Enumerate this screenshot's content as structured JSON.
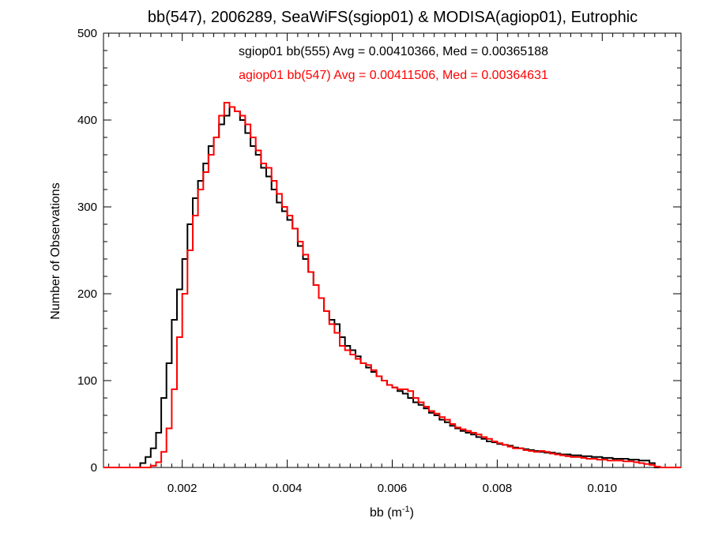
{
  "chart_data": {
    "type": "line",
    "step": true,
    "title": "bb(547), 2006289, SeaWiFS(sgiop01) & MODISA(agiop01), Eutrophic",
    "xlabel": "bb (m",
    "xlabel_sup": "-1",
    "xlabel_close": ")",
    "ylabel": "Number of Observations",
    "xlim": [
      0.0005,
      0.0115
    ],
    "ylim": [
      0,
      500
    ],
    "x_ticks": [
      0.002,
      0.004,
      0.006,
      0.008,
      0.01
    ],
    "x_tick_labels": [
      "0.002",
      "0.004",
      "0.006",
      "0.008",
      "0.010"
    ],
    "y_ticks": [
      0,
      100,
      200,
      300,
      400,
      500
    ],
    "y_tick_labels": [
      "0",
      "100",
      "200",
      "300",
      "400",
      "500"
    ],
    "grid": false,
    "annotations": [
      {
        "text": "sgiop01 bb(555) Avg = 0.00410366, Med = 0.00365188",
        "color": "#000000"
      },
      {
        "text": "agiop01 bb(547) Avg = 0.00411506, Med = 0.00364631",
        "color": "#ff0000"
      }
    ],
    "series": [
      {
        "color": "#000000",
        "points": [
          [
            0.0005,
            0
          ],
          [
            0.001,
            0
          ],
          [
            0.0012,
            5
          ],
          [
            0.0013,
            12
          ],
          [
            0.0014,
            22
          ],
          [
            0.0015,
            40
          ],
          [
            0.0016,
            80
          ],
          [
            0.0017,
            120
          ],
          [
            0.0018,
            170
          ],
          [
            0.0019,
            205
          ],
          [
            0.002,
            240
          ],
          [
            0.0021,
            280
          ],
          [
            0.0022,
            310
          ],
          [
            0.0023,
            330
          ],
          [
            0.0024,
            350
          ],
          [
            0.0025,
            370
          ],
          [
            0.0026,
            380
          ],
          [
            0.0027,
            395
          ],
          [
            0.0028,
            405
          ],
          [
            0.0029,
            415
          ],
          [
            0.003,
            410
          ],
          [
            0.0031,
            400
          ],
          [
            0.0032,
            385
          ],
          [
            0.0033,
            370
          ],
          [
            0.0034,
            360
          ],
          [
            0.0035,
            345
          ],
          [
            0.0036,
            335
          ],
          [
            0.0037,
            320
          ],
          [
            0.0038,
            305
          ],
          [
            0.0039,
            295
          ],
          [
            0.004,
            285
          ],
          [
            0.0041,
            275
          ],
          [
            0.0042,
            255
          ],
          [
            0.0043,
            240
          ],
          [
            0.0044,
            225
          ],
          [
            0.0045,
            210
          ],
          [
            0.0046,
            195
          ],
          [
            0.0047,
            180
          ],
          [
            0.0048,
            170
          ],
          [
            0.0049,
            165
          ],
          [
            0.005,
            150
          ],
          [
            0.0051,
            140
          ],
          [
            0.0052,
            135
          ],
          [
            0.0053,
            128
          ],
          [
            0.0054,
            120
          ],
          [
            0.0055,
            115
          ],
          [
            0.0056,
            110
          ],
          [
            0.0057,
            105
          ],
          [
            0.0058,
            100
          ],
          [
            0.0059,
            95
          ],
          [
            0.006,
            92
          ],
          [
            0.0061,
            88
          ],
          [
            0.0062,
            85
          ],
          [
            0.0063,
            80
          ],
          [
            0.0064,
            75
          ],
          [
            0.0065,
            72
          ],
          [
            0.0066,
            68
          ],
          [
            0.0067,
            63
          ],
          [
            0.0068,
            60
          ],
          [
            0.0069,
            55
          ],
          [
            0.007,
            52
          ],
          [
            0.0071,
            48
          ],
          [
            0.0072,
            45
          ],
          [
            0.0073,
            42
          ],
          [
            0.0074,
            40
          ],
          [
            0.0075,
            38
          ],
          [
            0.0076,
            35
          ],
          [
            0.0077,
            33
          ],
          [
            0.0078,
            30
          ],
          [
            0.0079,
            29
          ],
          [
            0.008,
            27
          ],
          [
            0.0081,
            26
          ],
          [
            0.0082,
            25
          ],
          [
            0.0083,
            23
          ],
          [
            0.0084,
            22
          ],
          [
            0.0085,
            21
          ],
          [
            0.0086,
            20
          ],
          [
            0.0087,
            19
          ],
          [
            0.0088,
            18
          ],
          [
            0.0089,
            17
          ],
          [
            0.009,
            17
          ],
          [
            0.0091,
            16
          ],
          [
            0.0092,
            15
          ],
          [
            0.0093,
            15
          ],
          [
            0.0094,
            14
          ],
          [
            0.0095,
            14
          ],
          [
            0.0096,
            13
          ],
          [
            0.0097,
            13
          ],
          [
            0.0098,
            12
          ],
          [
            0.0099,
            12
          ],
          [
            0.01,
            11
          ],
          [
            0.0101,
            11
          ],
          [
            0.0102,
            10
          ],
          [
            0.0103,
            10
          ],
          [
            0.0104,
            10
          ],
          [
            0.0105,
            9
          ],
          [
            0.0106,
            9
          ],
          [
            0.0107,
            8
          ],
          [
            0.0108,
            8
          ],
          [
            0.0109,
            5
          ],
          [
            0.011,
            0
          ],
          [
            0.0115,
            0
          ]
        ]
      },
      {
        "color": "#ff0000",
        "points": [
          [
            0.0005,
            0
          ],
          [
            0.0012,
            0
          ],
          [
            0.0014,
            2
          ],
          [
            0.0015,
            6
          ],
          [
            0.0016,
            18
          ],
          [
            0.0017,
            45
          ],
          [
            0.0018,
            90
          ],
          [
            0.0019,
            150
          ],
          [
            0.002,
            200
          ],
          [
            0.0021,
            250
          ],
          [
            0.0022,
            290
          ],
          [
            0.0023,
            320
          ],
          [
            0.0024,
            340
          ],
          [
            0.0025,
            360
          ],
          [
            0.0026,
            380
          ],
          [
            0.0027,
            405
          ],
          [
            0.0028,
            420
          ],
          [
            0.0029,
            415
          ],
          [
            0.003,
            410
          ],
          [
            0.0031,
            405
          ],
          [
            0.0032,
            395
          ],
          [
            0.0033,
            380
          ],
          [
            0.0034,
            365
          ],
          [
            0.0035,
            350
          ],
          [
            0.0036,
            345
          ],
          [
            0.0037,
            330
          ],
          [
            0.0038,
            315
          ],
          [
            0.0039,
            300
          ],
          [
            0.004,
            290
          ],
          [
            0.0041,
            275
          ],
          [
            0.0042,
            260
          ],
          [
            0.0043,
            245
          ],
          [
            0.0044,
            225
          ],
          [
            0.0045,
            210
          ],
          [
            0.0046,
            195
          ],
          [
            0.0047,
            180
          ],
          [
            0.0048,
            165
          ],
          [
            0.0049,
            155
          ],
          [
            0.005,
            140
          ],
          [
            0.0051,
            135
          ],
          [
            0.0052,
            130
          ],
          [
            0.0053,
            125
          ],
          [
            0.0054,
            120
          ],
          [
            0.0055,
            118
          ],
          [
            0.0056,
            112
          ],
          [
            0.0057,
            105
          ],
          [
            0.0058,
            100
          ],
          [
            0.0059,
            95
          ],
          [
            0.006,
            92
          ],
          [
            0.0061,
            90
          ],
          [
            0.0062,
            90
          ],
          [
            0.0063,
            88
          ],
          [
            0.0064,
            80
          ],
          [
            0.0065,
            75
          ],
          [
            0.0066,
            70
          ],
          [
            0.0067,
            65
          ],
          [
            0.0068,
            62
          ],
          [
            0.0069,
            58
          ],
          [
            0.007,
            55
          ],
          [
            0.0071,
            50
          ],
          [
            0.0072,
            46
          ],
          [
            0.0073,
            44
          ],
          [
            0.0074,
            42
          ],
          [
            0.0075,
            40
          ],
          [
            0.0076,
            38
          ],
          [
            0.0077,
            35
          ],
          [
            0.0078,
            33
          ],
          [
            0.0079,
            30
          ],
          [
            0.008,
            28
          ],
          [
            0.0081,
            26
          ],
          [
            0.0082,
            24
          ],
          [
            0.0083,
            22
          ],
          [
            0.0084,
            22
          ],
          [
            0.0085,
            20
          ],
          [
            0.0086,
            19
          ],
          [
            0.0087,
            18
          ],
          [
            0.0088,
            19
          ],
          [
            0.0089,
            18
          ],
          [
            0.009,
            16
          ],
          [
            0.0091,
            15
          ],
          [
            0.0092,
            14
          ],
          [
            0.0093,
            13
          ],
          [
            0.0094,
            12
          ],
          [
            0.0095,
            12
          ],
          [
            0.0096,
            11
          ],
          [
            0.0097,
            10
          ],
          [
            0.0098,
            10
          ],
          [
            0.0099,
            9
          ],
          [
            0.01,
            9
          ],
          [
            0.0101,
            8
          ],
          [
            0.0102,
            8
          ],
          [
            0.0103,
            8
          ],
          [
            0.0104,
            7
          ],
          [
            0.0105,
            7
          ],
          [
            0.0106,
            6
          ],
          [
            0.0107,
            5
          ],
          [
            0.0108,
            4
          ],
          [
            0.0109,
            3
          ],
          [
            0.011,
            1
          ],
          [
            0.0111,
            0
          ],
          [
            0.0115,
            0
          ]
        ]
      }
    ]
  }
}
